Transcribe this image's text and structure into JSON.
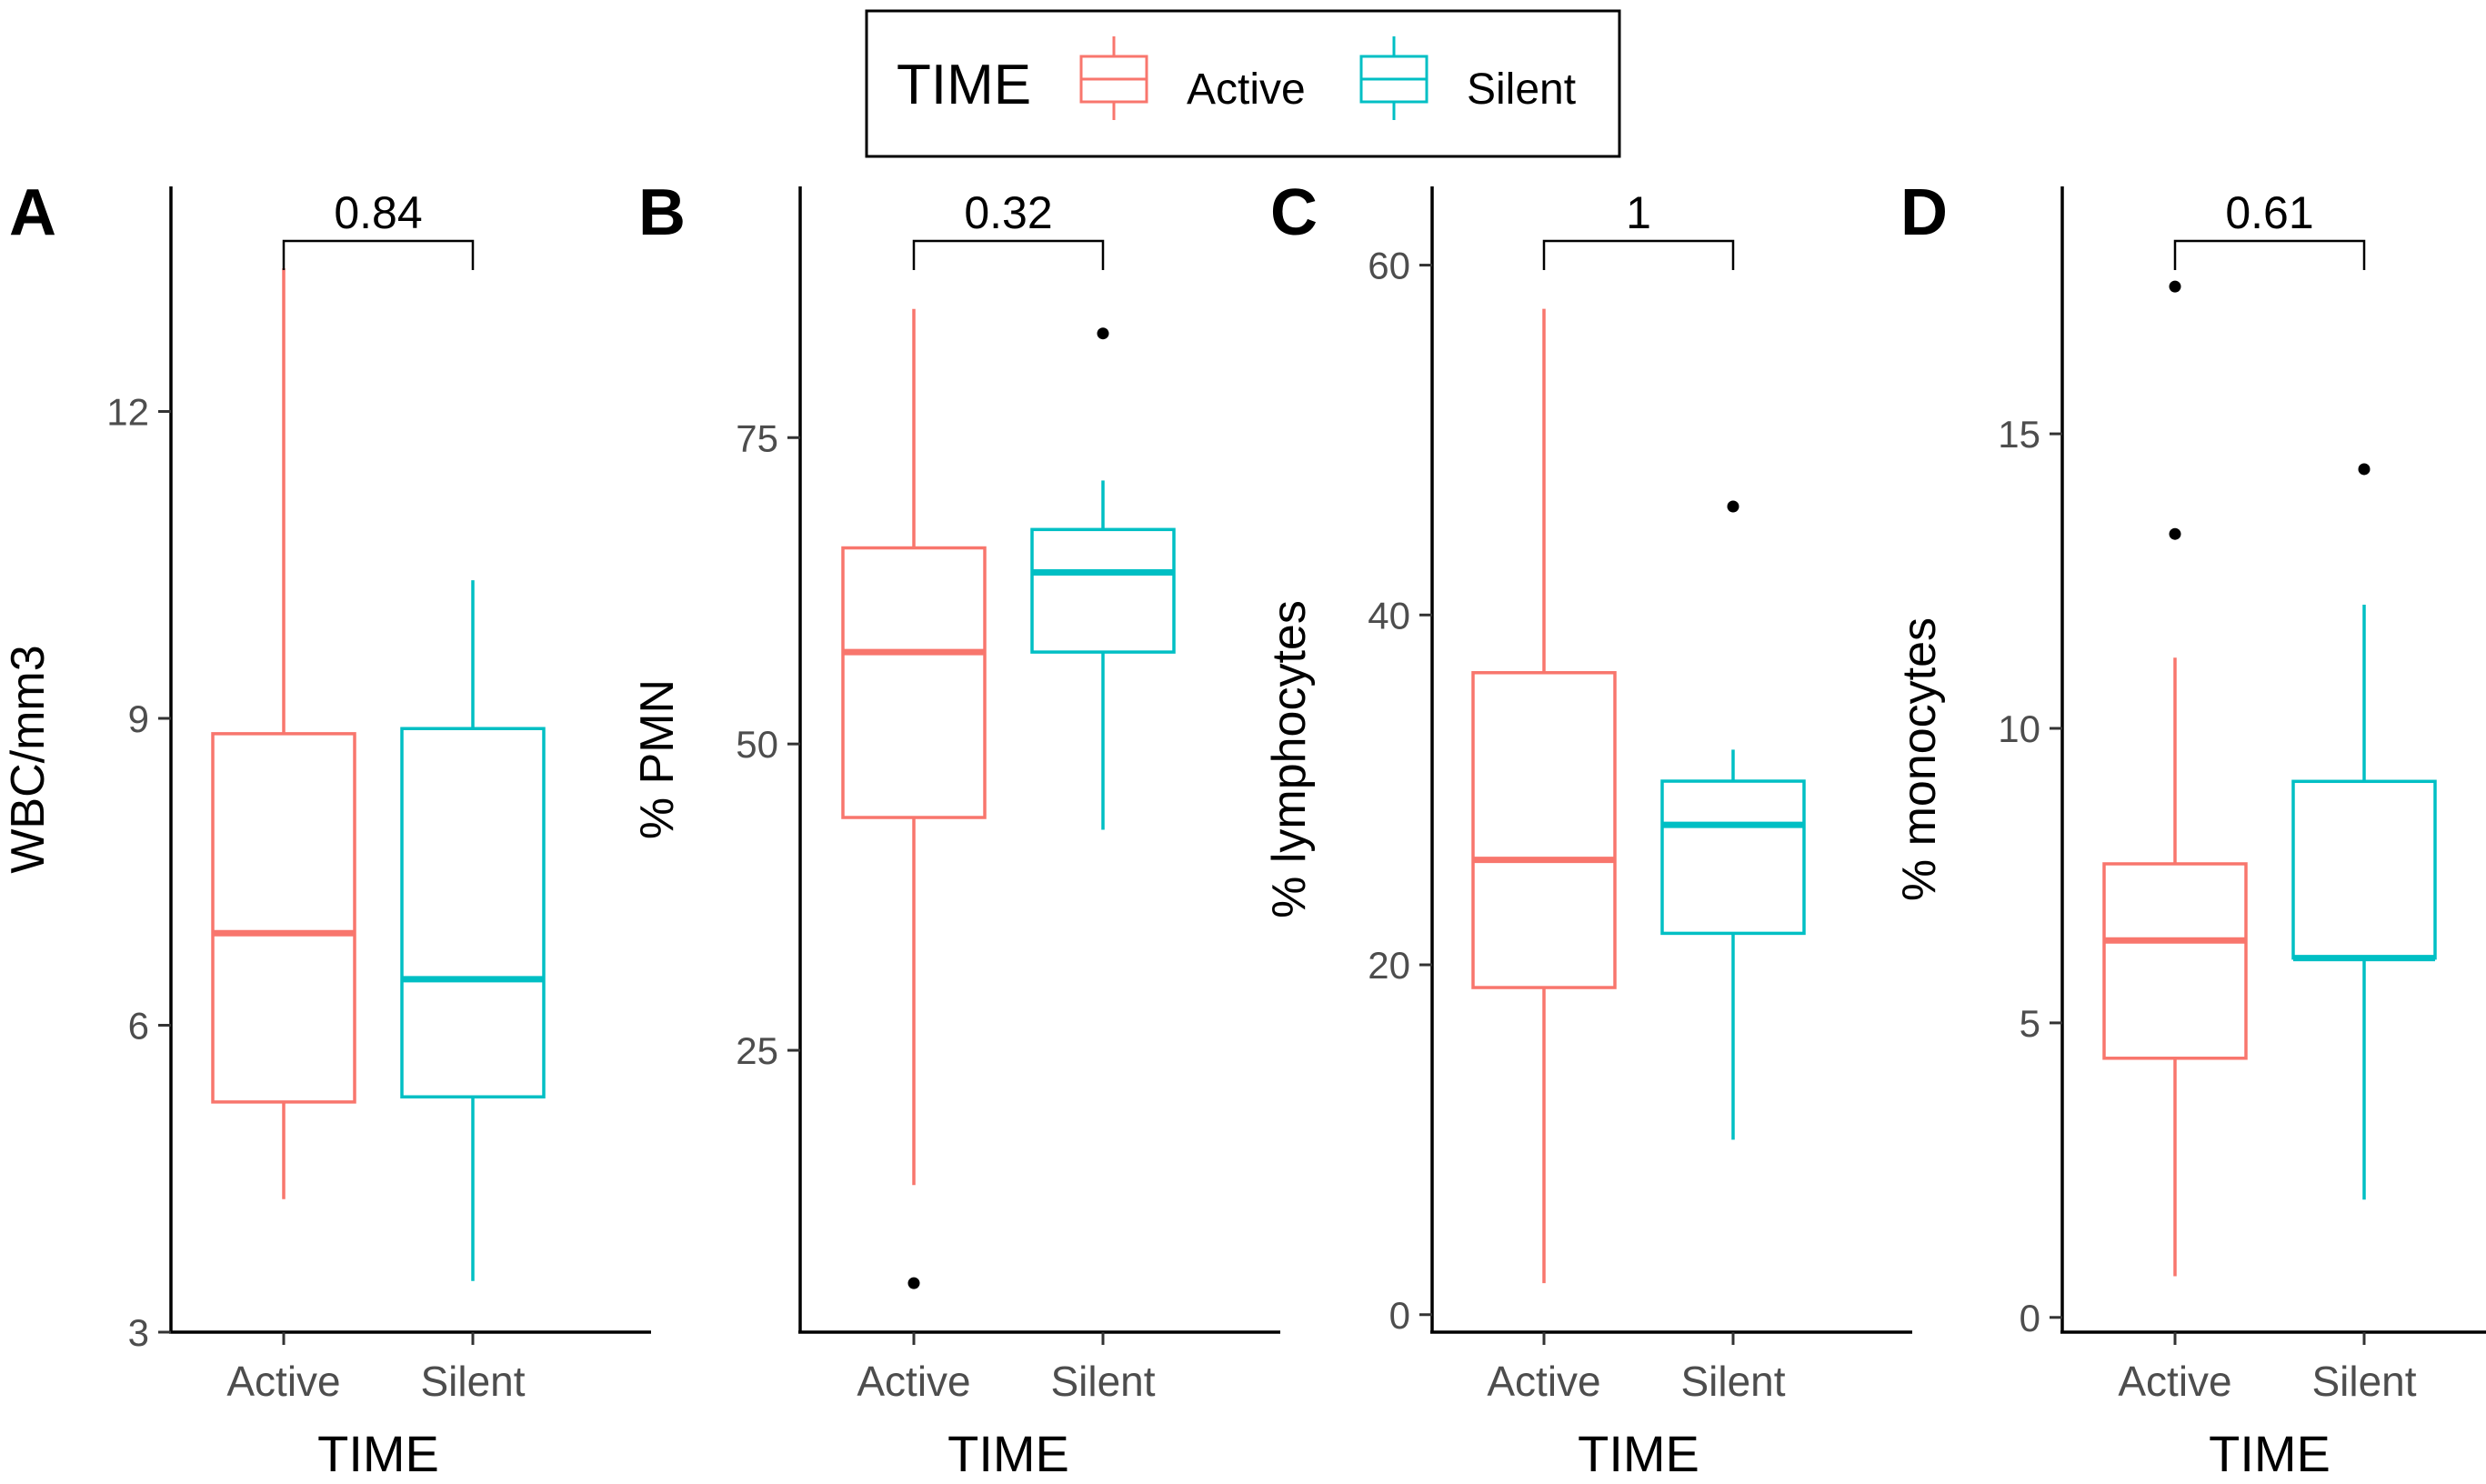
{
  "legend": {
    "title": "TIME",
    "items": [
      {
        "label": "Active",
        "color": "#F8766D"
      },
      {
        "label": "Silent",
        "color": "#00BFC4"
      }
    ]
  },
  "chart_data": [
    {
      "type": "box",
      "panel": "A",
      "title": "",
      "xlabel": "TIME",
      "ylabel": "WBC/mm3",
      "categories": [
        "Active",
        "Silent"
      ],
      "ylim": [
        3.0,
        14.2
      ],
      "yticks": [
        3,
        6,
        9,
        12
      ],
      "yticklabels": [
        "3",
        "6",
        "9",
        "12"
      ],
      "boxes": [
        {
          "group": "Active",
          "min": 4.3,
          "q1": 5.25,
          "median": 6.9,
          "q3": 8.85,
          "max": 13.4,
          "outliers": []
        },
        {
          "group": "Silent",
          "min": 3.5,
          "q1": 5.3,
          "median": 6.45,
          "q3": 8.9,
          "max": 10.35,
          "outliers": []
        }
      ],
      "comparison": {
        "label": "0.84",
        "value": 0.84
      }
    },
    {
      "type": "box",
      "panel": "B",
      "title": "",
      "xlabel": "TIME",
      "ylabel": "% PMN",
      "categories": [
        "Active",
        "Silent"
      ],
      "ylim": [
        2.0,
        95.5
      ],
      "yticks": [
        25,
        50,
        75
      ],
      "yticklabels": [
        "25",
        "50",
        "75"
      ],
      "boxes": [
        {
          "group": "Active",
          "min": 14.0,
          "q1": 44.0,
          "median": 57.5,
          "q3": 66.0,
          "max": 85.5,
          "outliers": [
            6.0
          ]
        },
        {
          "group": "Silent",
          "min": 43.0,
          "q1": 57.5,
          "median": 64.0,
          "q3": 67.5,
          "max": 71.5,
          "outliers": [
            83.5
          ]
        }
      ],
      "comparison": {
        "label": "0.32",
        "value": 0.32
      }
    },
    {
      "type": "box",
      "panel": "C",
      "title": "",
      "xlabel": "TIME",
      "ylabel": "% lymphocytes",
      "categories": [
        "Active",
        "Silent"
      ],
      "ylim": [
        -1.0,
        64.5
      ],
      "yticks": [
        0,
        20,
        40,
        60
      ],
      "yticklabels": [
        "0",
        "20",
        "40",
        "60"
      ],
      "boxes": [
        {
          "group": "Active",
          "min": 1.8,
          "q1": 18.7,
          "median": 26.0,
          "q3": 36.7,
          "max": 57.5,
          "outliers": []
        },
        {
          "group": "Silent",
          "min": 10.0,
          "q1": 21.8,
          "median": 28.0,
          "q3": 30.5,
          "max": 32.3,
          "outliers": [
            46.2
          ]
        }
      ],
      "comparison": {
        "label": "1",
        "value": 1
      }
    },
    {
      "type": "box",
      "panel": "D",
      "title": "",
      "xlabel": "TIME",
      "ylabel": "% monocytes",
      "categories": [
        "Active",
        "Silent"
      ],
      "ylim": [
        -0.25,
        19.2
      ],
      "yticks": [
        0,
        5,
        10,
        15
      ],
      "yticklabels": [
        "0",
        "5",
        "10",
        "15"
      ],
      "boxes": [
        {
          "group": "Active",
          "min": 0.7,
          "q1": 4.4,
          "median": 6.4,
          "q3": 7.7,
          "max": 11.2,
          "outliers": [
            13.3,
            17.5
          ]
        },
        {
          "group": "Silent",
          "min": 2.0,
          "q1": 6.1,
          "median": 6.1,
          "q3": 9.1,
          "max": 12.1,
          "outliers": [
            14.4
          ]
        }
      ],
      "comparison": {
        "label": "0.61",
        "value": 0.61
      }
    }
  ]
}
